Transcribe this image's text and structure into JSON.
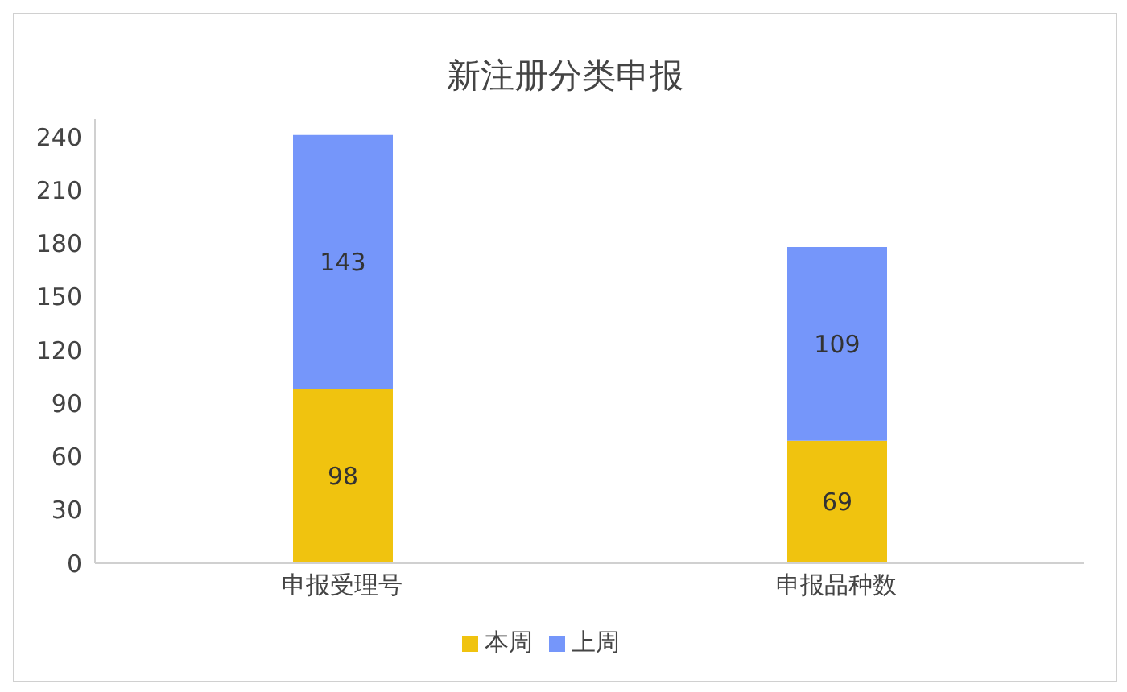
{
  "chart_data": {
    "type": "bar",
    "title": "新注册分类申报",
    "categories": [
      "申报受理号",
      "申报品种数"
    ],
    "stacked": true,
    "data_labels": true,
    "legend": "bottom",
    "grid": false,
    "ylim": [
      0,
      250
    ],
    "yticks": [
      0,
      30,
      60,
      90,
      120,
      150,
      180,
      210,
      240
    ],
    "series": [
      {
        "name": "本周",
        "color": "#f0c30f",
        "values": [
          98,
          69
        ]
      },
      {
        "name": "上周",
        "color": "#7596fa",
        "values": [
          143,
          109
        ]
      }
    ]
  }
}
